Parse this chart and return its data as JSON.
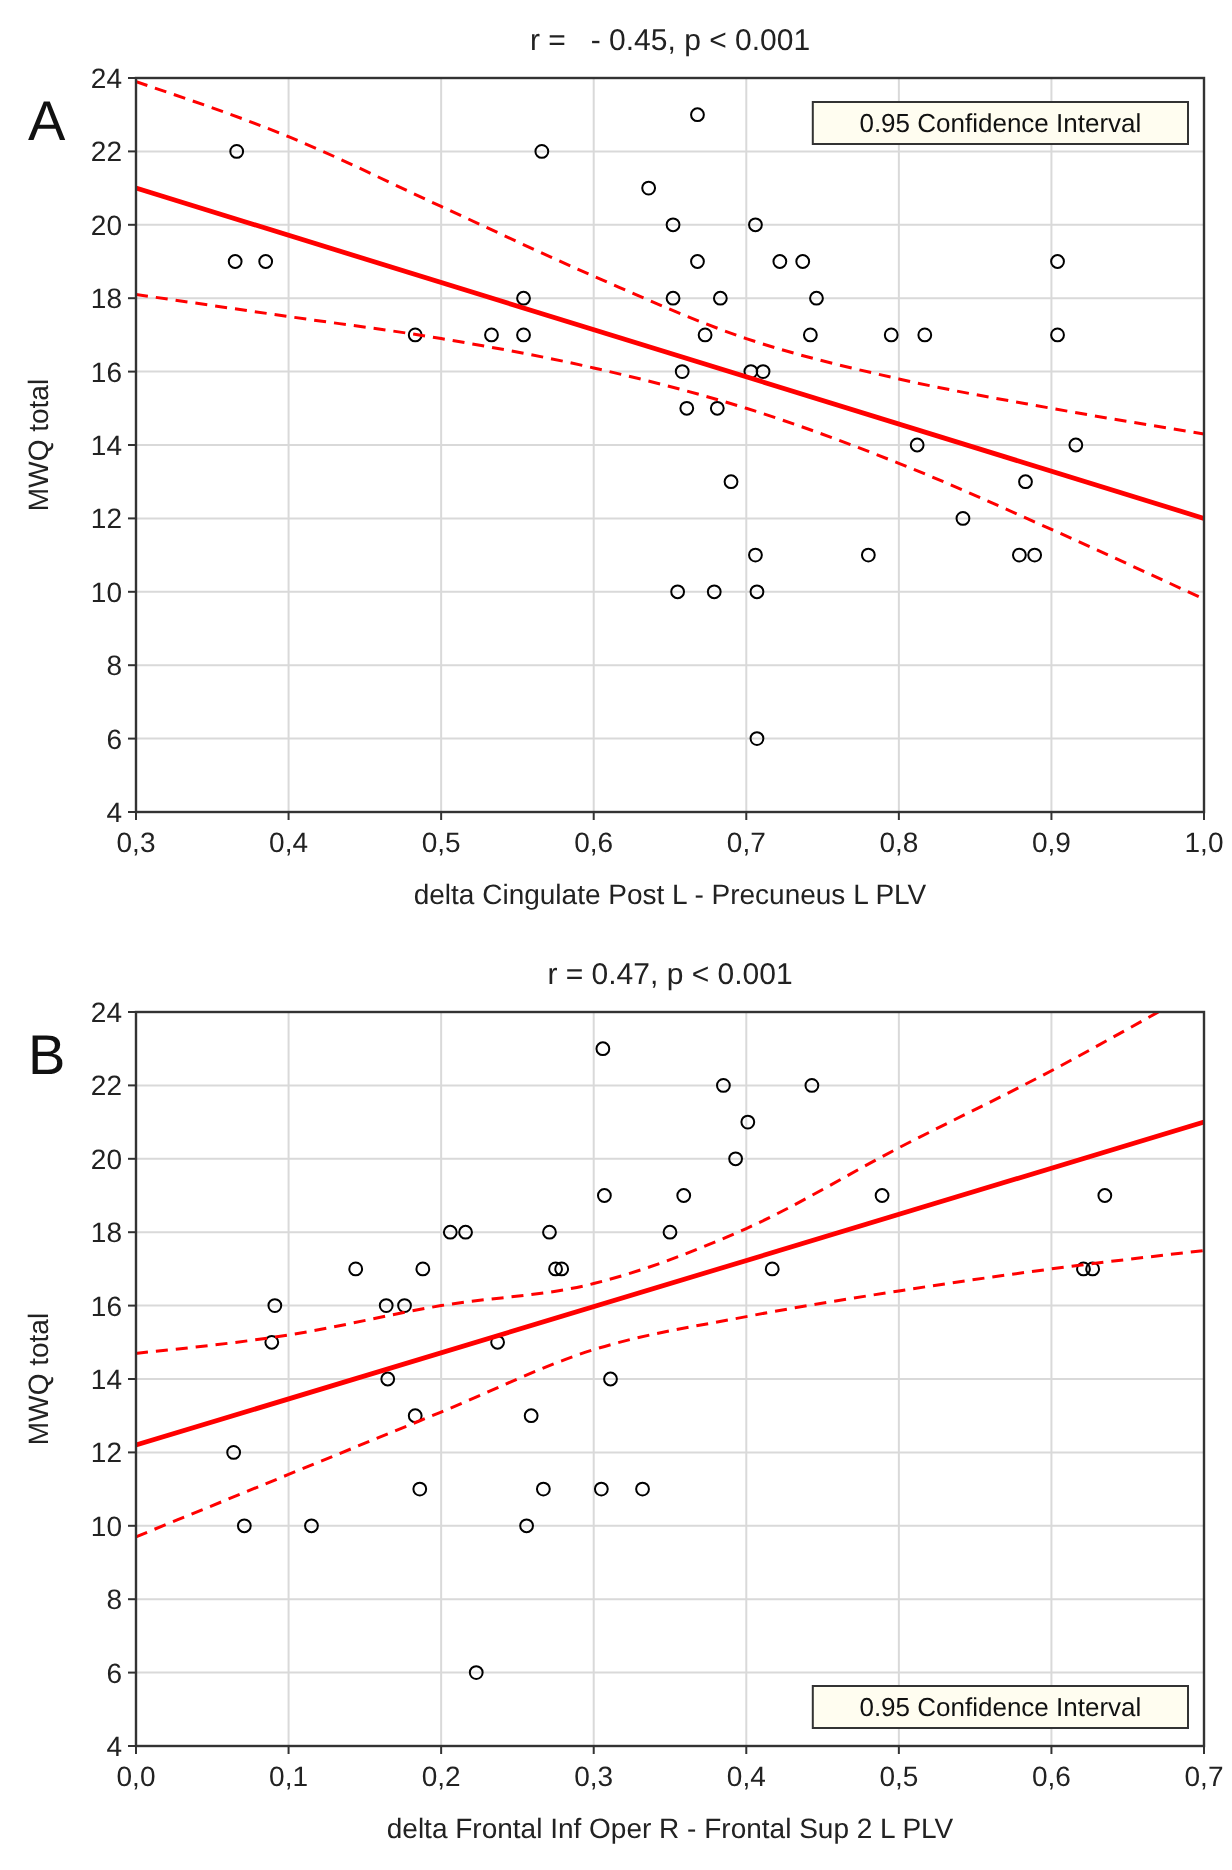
{
  "chart_data": [
    {
      "type": "scatter",
      "title": "r =   - 0.45, p < 0.001",
      "xlabel": "delta Cingulate Post L - Precuneus L PLV",
      "ylabel": "MWQ total",
      "annotations": [
        "A",
        "0.95 Confidence Interval"
      ],
      "grid": true,
      "xlim": [
        0.3,
        1.0
      ],
      "xticks": [
        {
          "value": 0.3,
          "label": "0,3"
        },
        {
          "value": 0.4,
          "label": "0,4"
        },
        {
          "value": 0.5,
          "label": "0,5"
        },
        {
          "value": 0.6,
          "label": "0,6"
        },
        {
          "value": 0.7,
          "label": "0,7"
        },
        {
          "value": 0.8,
          "label": "0,8"
        },
        {
          "value": 0.9,
          "label": "0,9"
        },
        {
          "value": 1.0,
          "label": "1,0"
        }
      ],
      "ylim": [
        4,
        24
      ],
      "yticks": [
        4,
        6,
        8,
        10,
        12,
        14,
        16,
        18,
        20,
        22,
        24
      ],
      "series": [
        {
          "type": "scatter",
          "marker": "circle",
          "color": "#000000",
          "x": [
            0.366,
            0.365,
            0.385,
            0.483,
            0.533,
            0.554,
            0.554,
            0.566,
            0.636,
            0.652,
            0.652,
            0.668,
            0.668,
            0.683,
            0.673,
            0.658,
            0.661,
            0.681,
            0.706,
            0.703,
            0.711,
            0.722,
            0.737,
            0.746,
            0.742,
            0.795,
            0.817,
            0.904,
            0.904,
            0.812,
            0.916,
            0.69,
            0.706,
            0.655,
            0.679,
            0.707,
            0.707,
            0.78,
            0.842,
            0.883,
            0.879,
            0.889
          ],
          "values": [
            22,
            19,
            19,
            17,
            17,
            18,
            17,
            22,
            21,
            20,
            18,
            23,
            19,
            18,
            17,
            16,
            15,
            15,
            20,
            16,
            16,
            19,
            19,
            18,
            17,
            17,
            17,
            19,
            17,
            14,
            14,
            13,
            11,
            10,
            10,
            10,
            6,
            11,
            12,
            13,
            11,
            11
          ]
        },
        {
          "type": "line",
          "line_style": "solid",
          "color": "#ff0000",
          "x": [
            0.3,
            1.0
          ],
          "values": [
            21,
            12
          ]
        },
        {
          "type": "line",
          "line_style": "dashed",
          "color": "#ff0000",
          "x": [
            0.3,
            0.4,
            0.5,
            0.6,
            0.7,
            0.8,
            0.9,
            1.0
          ],
          "values": [
            23.9,
            22.4,
            20.5,
            18.6,
            16.9,
            15.8,
            15.0,
            14.3
          ]
        },
        {
          "type": "line",
          "line_style": "dashed",
          "color": "#ff0000",
          "x": [
            0.3,
            0.4,
            0.5,
            0.6,
            0.7,
            0.8,
            0.9,
            1.0
          ],
          "values": [
            18.1,
            17.5,
            16.9,
            16.1,
            15.0,
            13.5,
            11.7,
            9.8
          ]
        }
      ]
    },
    {
      "type": "scatter",
      "title": "r = 0.47, p < 0.001",
      "xlabel": "delta Frontal Inf Oper R - Frontal Sup 2 L PLV",
      "ylabel": "MWQ total",
      "annotations": [
        "B",
        "0.95 Confidence Interval"
      ],
      "grid": true,
      "xlim": [
        0.0,
        0.7
      ],
      "xticks": [
        {
          "value": 0.0,
          "label": "0,0"
        },
        {
          "value": 0.1,
          "label": "0,1"
        },
        {
          "value": 0.2,
          "label": "0,2"
        },
        {
          "value": 0.3,
          "label": "0,3"
        },
        {
          "value": 0.4,
          "label": "0,4"
        },
        {
          "value": 0.5,
          "label": "0,5"
        },
        {
          "value": 0.6,
          "label": "0,6"
        },
        {
          "value": 0.7,
          "label": "0,7"
        }
      ],
      "ylim": [
        4,
        24
      ],
      "yticks": [
        4,
        6,
        8,
        10,
        12,
        14,
        16,
        18,
        20,
        22,
        24
      ],
      "series": [
        {
          "type": "scatter",
          "marker": "circle",
          "color": "#000000",
          "x": [
            0.306,
            0.385,
            0.443,
            0.401,
            0.393,
            0.307,
            0.359,
            0.489,
            0.635,
            0.206,
            0.216,
            0.271,
            0.35,
            0.144,
            0.188,
            0.275,
            0.279,
            0.417,
            0.621,
            0.627,
            0.091,
            0.164,
            0.176,
            0.089,
            0.237,
            0.165,
            0.311,
            0.183,
            0.259,
            0.064,
            0.186,
            0.267,
            0.305,
            0.332,
            0.071,
            0.115,
            0.256,
            0.223
          ],
          "values": [
            23,
            22,
            22,
            21,
            20,
            19,
            19,
            19,
            19,
            18,
            18,
            18,
            18,
            17,
            17,
            17,
            17,
            17,
            17,
            17,
            16,
            16,
            16,
            15,
            15,
            14,
            14,
            13,
            13,
            12,
            11,
            11,
            11,
            11,
            10,
            10,
            10,
            6
          ]
        },
        {
          "type": "line",
          "line_style": "solid",
          "color": "#ff0000",
          "x": [
            0.0,
            0.7
          ],
          "values": [
            12.2,
            21.0
          ]
        },
        {
          "type": "line",
          "line_style": "dashed",
          "color": "#ff0000",
          "x": [
            0.0,
            0.1,
            0.2,
            0.3,
            0.4,
            0.5,
            0.6,
            0.67
          ],
          "values": [
            14.7,
            15.2,
            16.0,
            16.6,
            18.1,
            20.3,
            22.4,
            24.0
          ]
        },
        {
          "type": "line",
          "line_style": "dashed",
          "color": "#ff0000",
          "x": [
            0.0,
            0.1,
            0.2,
            0.3,
            0.4,
            0.5,
            0.6,
            0.7
          ],
          "values": [
            9.7,
            11.4,
            13.1,
            14.8,
            15.7,
            16.4,
            17.0,
            17.5
          ]
        }
      ]
    }
  ]
}
